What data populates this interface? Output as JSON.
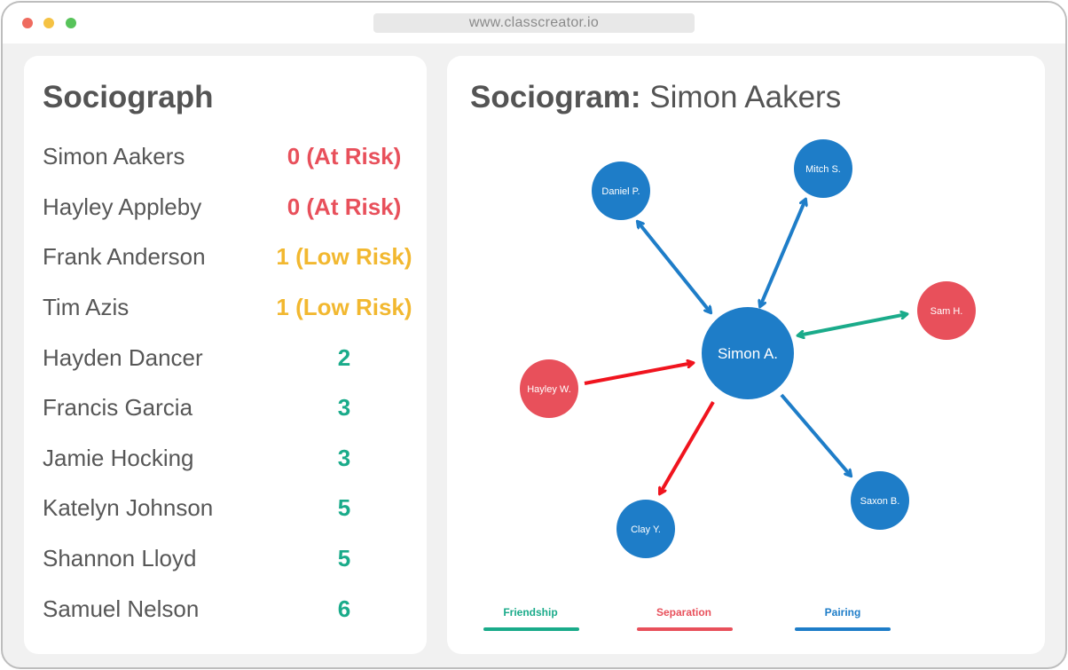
{
  "browser": {
    "url": "www.classcreator.io"
  },
  "sociograph": {
    "title": "Sociograph",
    "rows": [
      {
        "name": "Simon Aakers",
        "score": "0 (At Risk)",
        "color": "#e8505b"
      },
      {
        "name": "Hayley Appleby",
        "score": "0 (At Risk)",
        "color": "#e8505b"
      },
      {
        "name": "Frank Anderson",
        "score": "1 (Low Risk)",
        "color": "#f2b830"
      },
      {
        "name": "Tim Azis",
        "score": "1 (Low Risk)",
        "color": "#f2b830"
      },
      {
        "name": "Hayden Dancer",
        "score": "2",
        "color": "#1aab8a"
      },
      {
        "name": "Francis Garcia",
        "score": "3",
        "color": "#1aab8a"
      },
      {
        "name": "Jamie Hocking",
        "score": "3",
        "color": "#1aab8a"
      },
      {
        "name": "Katelyn Johnson",
        "score": "5",
        "color": "#1aab8a"
      },
      {
        "name": "Shannon Lloyd",
        "score": "5",
        "color": "#1aab8a"
      },
      {
        "name": "Samuel Nelson",
        "score": "6",
        "color": "#1aab8a"
      }
    ]
  },
  "sociogram": {
    "title_prefix": "Sociogram:",
    "title_name": "Simon Aakers",
    "center": {
      "label": "Simon A.",
      "color": "#1e7dc8"
    },
    "nodes": [
      {
        "label": "Daniel P.",
        "color": "#1e7dc8",
        "relation": "Pairing",
        "direction": "both"
      },
      {
        "label": "Mitch S.",
        "color": "#1e7dc8",
        "relation": "Pairing",
        "direction": "both"
      },
      {
        "label": "Sam H.",
        "color": "#e8505b",
        "relation": "Friendship",
        "direction": "both"
      },
      {
        "label": "Hayley W.",
        "color": "#e8505b",
        "relation": "Separation",
        "direction": "in"
      },
      {
        "label": "Clay Y.",
        "color": "#1e7dc8",
        "relation": "Separation",
        "direction": "out"
      },
      {
        "label": "Saxon B.",
        "color": "#1e7dc8",
        "relation": "Pairing",
        "direction": "out"
      }
    ],
    "arrow_colors": {
      "Friendship": "#1aab8a",
      "Separation": "#f0141e",
      "Pairing": "#1e7dc8"
    },
    "legend": [
      {
        "label": "Friendship",
        "color": "#1aab8a"
      },
      {
        "label": "Separation",
        "color": "#e8505b"
      },
      {
        "label": "Pairing",
        "color": "#1e7dc8"
      }
    ]
  }
}
